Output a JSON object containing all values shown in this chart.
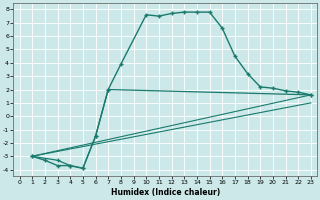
{
  "xlabel": "Humidex (Indice chaleur)",
  "background_color": "#cce8e8",
  "grid_color": "#ffffff",
  "line_color": "#1a7a6e",
  "xlim": [
    -0.5,
    23.5
  ],
  "ylim": [
    -4.5,
    8.5
  ],
  "xticks": [
    0,
    1,
    2,
    3,
    4,
    5,
    6,
    7,
    8,
    9,
    10,
    11,
    12,
    13,
    14,
    15,
    16,
    17,
    18,
    19,
    20,
    21,
    22,
    23
  ],
  "yticks": [
    -4,
    -3,
    -2,
    -1,
    0,
    1,
    2,
    3,
    4,
    5,
    6,
    7,
    8
  ],
  "series1_x": [
    1,
    2,
    3,
    4,
    5,
    6,
    7,
    8,
    10,
    11,
    12,
    13,
    14,
    15,
    16,
    17,
    18,
    19,
    20,
    21,
    22,
    23
  ],
  "series1_y": [
    -3.0,
    -3.3,
    -3.7,
    -3.7,
    -3.9,
    -1.5,
    2.0,
    3.9,
    7.6,
    7.5,
    7.7,
    7.8,
    7.8,
    7.8,
    6.6,
    4.5,
    3.2,
    2.2,
    2.1,
    1.9,
    1.8,
    1.6
  ],
  "series2_x": [
    1,
    3,
    4,
    5,
    6,
    7,
    23
  ],
  "series2_y": [
    -3.0,
    -3.3,
    -3.7,
    -3.9,
    -1.5,
    2.0,
    1.6
  ],
  "series3_x": [
    1,
    23
  ],
  "series3_y": [
    -3.0,
    1.6
  ],
  "series4_x": [
    1,
    23
  ],
  "series4_y": [
    -3.0,
    1.0
  ]
}
